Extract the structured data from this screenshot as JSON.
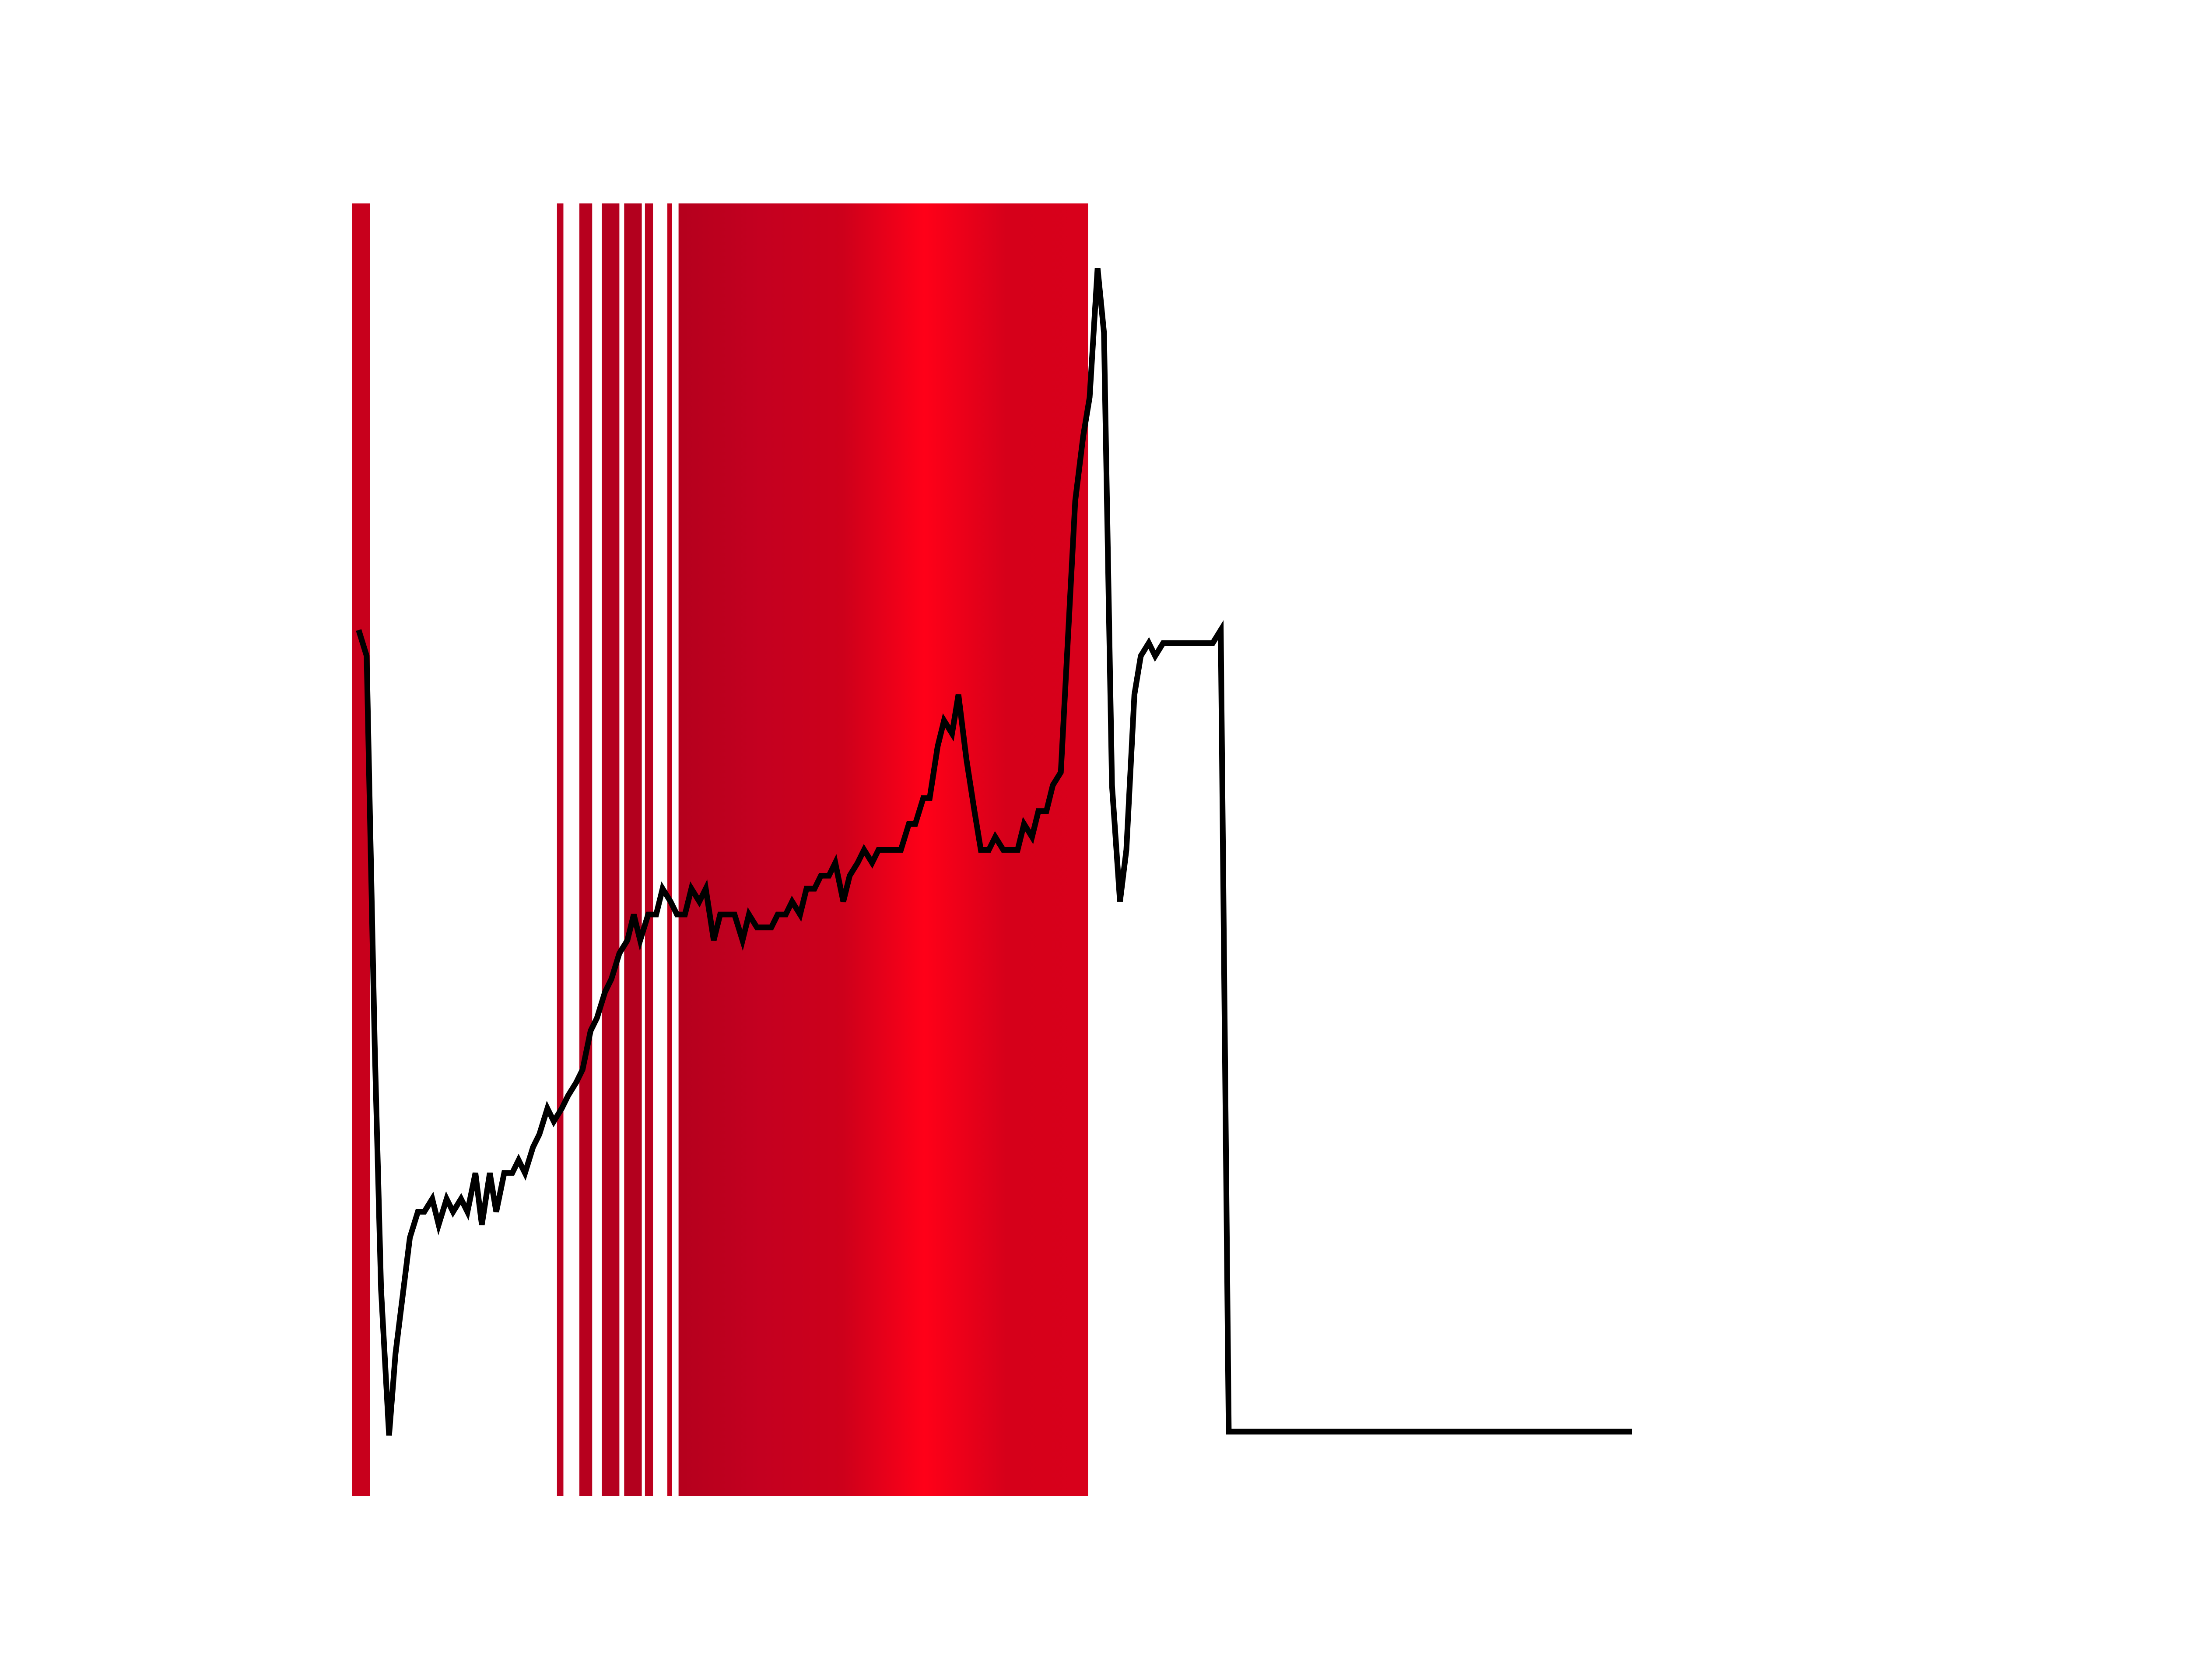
{
  "chart_data": {
    "type": "line",
    "title": "",
    "xlabel": "",
    "ylabel": "",
    "axes_visible": false,
    "grid": false,
    "legend": "none",
    "xlim": [
      0,
      1
    ],
    "ylim": [
      0,
      1
    ],
    "line_color": "#000000",
    "background_color": "#ffffff",
    "series": [
      {
        "points": [
          [
            0.004,
            0.67
          ],
          [
            0.009,
            0.65
          ],
          [
            0.014,
            0.35
          ],
          [
            0.018,
            0.16
          ],
          [
            0.023,
            0.047
          ],
          [
            0.027,
            0.11
          ],
          [
            0.036,
            0.2
          ],
          [
            0.041,
            0.22
          ],
          [
            0.045,
            0.22
          ],
          [
            0.05,
            0.23
          ],
          [
            0.054,
            0.21
          ],
          [
            0.059,
            0.23
          ],
          [
            0.063,
            0.22
          ],
          [
            0.068,
            0.23
          ],
          [
            0.072,
            0.22
          ],
          [
            0.077,
            0.25
          ],
          [
            0.081,
            0.21
          ],
          [
            0.086,
            0.25
          ],
          [
            0.09,
            0.22
          ],
          [
            0.095,
            0.25
          ],
          [
            0.1,
            0.25
          ],
          [
            0.104,
            0.26
          ],
          [
            0.108,
            0.25
          ],
          [
            0.113,
            0.27
          ],
          [
            0.117,
            0.28
          ],
          [
            0.122,
            0.3
          ],
          [
            0.126,
            0.29
          ],
          [
            0.131,
            0.3
          ],
          [
            0.135,
            0.31
          ],
          [
            0.14,
            0.32
          ],
          [
            0.144,
            0.33
          ],
          [
            0.149,
            0.36
          ],
          [
            0.153,
            0.37
          ],
          [
            0.158,
            0.39
          ],
          [
            0.162,
            0.4
          ],
          [
            0.167,
            0.42
          ],
          [
            0.172,
            0.43
          ],
          [
            0.176,
            0.45
          ],
          [
            0.18,
            0.43
          ],
          [
            0.185,
            0.45
          ],
          [
            0.19,
            0.45
          ],
          [
            0.194,
            0.47
          ],
          [
            0.199,
            0.46
          ],
          [
            0.203,
            0.45
          ],
          [
            0.208,
            0.45
          ],
          [
            0.212,
            0.47
          ],
          [
            0.217,
            0.46
          ],
          [
            0.221,
            0.47
          ],
          [
            0.226,
            0.43
          ],
          [
            0.23,
            0.45
          ],
          [
            0.235,
            0.45
          ],
          [
            0.239,
            0.45
          ],
          [
            0.244,
            0.43
          ],
          [
            0.248,
            0.45
          ],
          [
            0.253,
            0.44
          ],
          [
            0.257,
            0.44
          ],
          [
            0.262,
            0.44
          ],
          [
            0.266,
            0.45
          ],
          [
            0.271,
            0.45
          ],
          [
            0.275,
            0.46
          ],
          [
            0.28,
            0.45
          ],
          [
            0.284,
            0.47
          ],
          [
            0.289,
            0.47
          ],
          [
            0.293,
            0.48
          ],
          [
            0.298,
            0.48
          ],
          [
            0.302,
            0.49
          ],
          [
            0.307,
            0.46
          ],
          [
            0.311,
            0.48
          ],
          [
            0.316,
            0.49
          ],
          [
            0.32,
            0.5
          ],
          [
            0.325,
            0.49
          ],
          [
            0.329,
            0.5
          ],
          [
            0.334,
            0.5
          ],
          [
            0.338,
            0.5
          ],
          [
            0.343,
            0.5
          ],
          [
            0.348,
            0.52
          ],
          [
            0.352,
            0.52
          ],
          [
            0.357,
            0.54
          ],
          [
            0.361,
            0.54
          ],
          [
            0.366,
            0.58
          ],
          [
            0.37,
            0.6
          ],
          [
            0.375,
            0.59
          ],
          [
            0.379,
            0.62
          ],
          [
            0.384,
            0.57
          ],
          [
            0.389,
            0.53
          ],
          [
            0.393,
            0.5
          ],
          [
            0.398,
            0.5
          ],
          [
            0.402,
            0.51
          ],
          [
            0.407,
            0.5
          ],
          [
            0.411,
            0.5
          ],
          [
            0.416,
            0.5
          ],
          [
            0.42,
            0.52
          ],
          [
            0.425,
            0.51
          ],
          [
            0.429,
            0.53
          ],
          [
            0.434,
            0.53
          ],
          [
            0.438,
            0.55
          ],
          [
            0.443,
            0.56
          ],
          [
            0.452,
            0.77
          ],
          [
            0.457,
            0.82
          ],
          [
            0.461,
            0.85
          ],
          [
            0.466,
            0.95
          ],
          [
            0.47,
            0.9
          ],
          [
            0.475,
            0.55
          ],
          [
            0.48,
            0.46
          ],
          [
            0.484,
            0.5
          ],
          [
            0.489,
            0.62
          ],
          [
            0.493,
            0.65
          ],
          [
            0.498,
            0.66
          ],
          [
            0.502,
            0.65
          ],
          [
            0.507,
            0.66
          ],
          [
            0.511,
            0.66
          ],
          [
            0.516,
            0.66
          ],
          [
            0.52,
            0.66
          ],
          [
            0.525,
            0.66
          ],
          [
            0.529,
            0.66
          ],
          [
            0.534,
            0.66
          ],
          [
            0.538,
            0.66
          ],
          [
            0.543,
            0.67
          ],
          [
            0.548,
            0.05
          ],
          [
            0.552,
            0.05
          ],
          [
            0.6,
            0.05
          ],
          [
            0.65,
            0.05
          ],
          [
            0.7,
            0.05
          ],
          [
            0.75,
            0.05
          ],
          [
            0.8,
            0.05
          ]
        ]
      }
    ],
    "background_bands": [
      {
        "from": 0.0,
        "to": 0.011,
        "color": "#c8001c"
      },
      {
        "from": 0.128,
        "to": 0.132,
        "color": "#bd0020"
      },
      {
        "from": 0.142,
        "to": 0.15,
        "color": "#b7001e"
      },
      {
        "from": 0.156,
        "to": 0.167,
        "color": "#b5001f"
      },
      {
        "from": 0.17,
        "to": 0.181,
        "color": "#b3001e"
      },
      {
        "from": 0.183,
        "to": 0.188,
        "color": "#bb001e"
      },
      {
        "from": 0.197,
        "to": 0.2,
        "color": "#c2001c"
      },
      {
        "from": 0.204,
        "to": 0.46,
        "color": "#b5001d",
        "gradient": [
          "#b5001d",
          "#c40020",
          "#cd001b",
          "#ff0018",
          "#d6001a",
          "#d8001b"
        ]
      }
    ]
  }
}
